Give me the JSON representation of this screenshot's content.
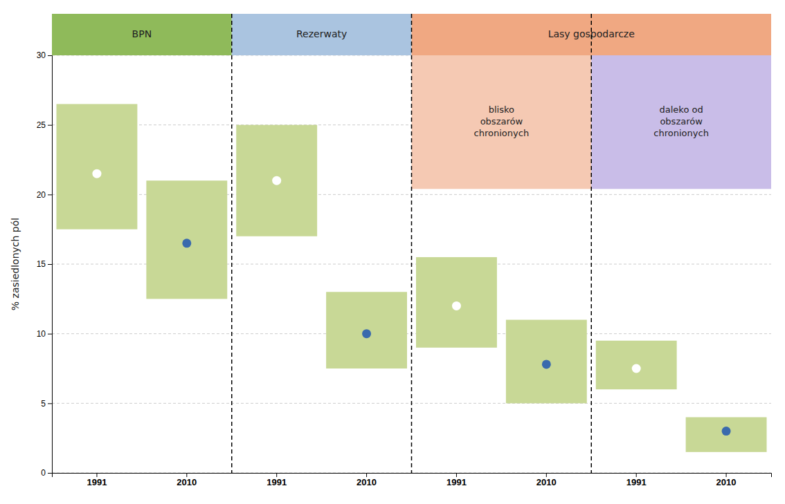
{
  "chart_data": {
    "type": "bar",
    "ylabel": "% zasiedlonych pól",
    "categories": [
      "1991",
      "2010",
      "1991",
      "2010",
      "1991",
      "2010",
      "1991",
      "2010"
    ],
    "series": [
      {
        "type": "bar",
        "color": "#c8d896",
        "bottoms": [
          17.5,
          12.5,
          17.0,
          7.5,
          9.0,
          5.0,
          6.0,
          1.5
        ],
        "values": [
          26.5,
          21.0,
          25.0,
          13.0,
          15.5,
          11.0,
          9.5,
          4.0
        ]
      },
      {
        "type": "scatter",
        "marker": "circle",
        "colors": [
          "#ffffff",
          "#3a6aad",
          "#ffffff",
          "#3a6aad",
          "#ffffff",
          "#3a6aad",
          "#ffffff",
          "#3a6aad"
        ],
        "values": [
          21.5,
          16.5,
          21.0,
          10.0,
          12.0,
          7.8,
          7.5,
          3.0
        ]
      }
    ],
    "annotations": [
      {
        "text": "BPN",
        "color": "#8fba5a",
        "categories": [
          0,
          1
        ]
      },
      {
        "text": "Rezerwaty",
        "color": "#aac4e0",
        "categories": [
          2,
          3
        ]
      },
      {
        "text": "Lasy gospodarcze",
        "color": "#f0a882",
        "categories": [
          4,
          5,
          6,
          7
        ],
        "children": [
          {
            "text": "blisko\nobszarów\nchronionych",
            "color": "#f5c9b3",
            "categories": [
              4,
              5
            ]
          },
          {
            "text": "daleko od\nobszarów\nchronionych",
            "color": "#c9bde8",
            "categories": [
              6,
              7
            ]
          }
        ]
      }
    ],
    "ylim": [
      0,
      30
    ],
    "yticks": [
      0,
      5,
      10,
      15,
      20,
      25,
      30
    ],
    "grid": true
  }
}
